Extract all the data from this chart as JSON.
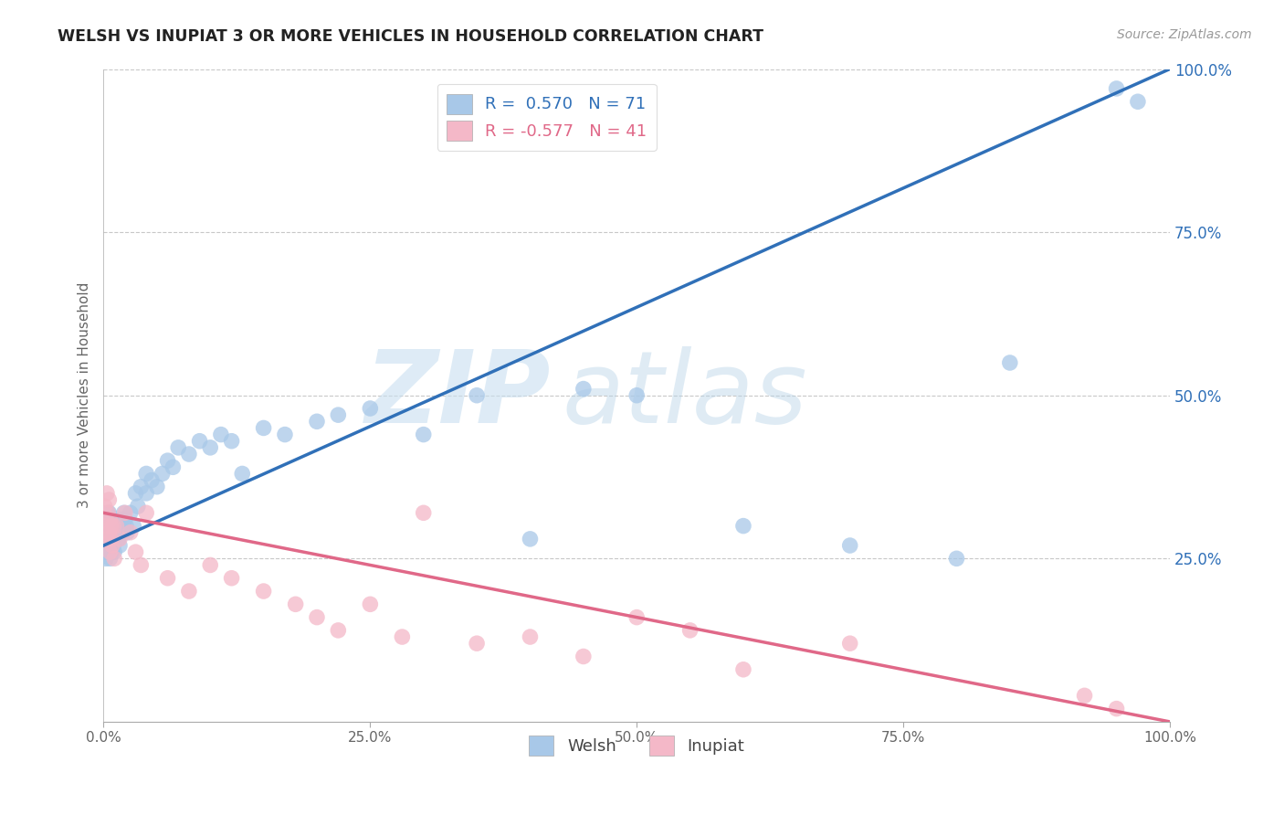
{
  "title": "WELSH VS INUPIAT 3 OR MORE VEHICLES IN HOUSEHOLD CORRELATION CHART",
  "source": "Source: ZipAtlas.com",
  "ylabel": "3 or more Vehicles in Household",
  "xlim": [
    0,
    1.0
  ],
  "ylim": [
    0,
    1.0
  ],
  "xticks": [
    0,
    0.25,
    0.5,
    0.75,
    1.0
  ],
  "yticks": [
    0.25,
    0.5,
    0.75,
    1.0
  ],
  "xticklabels": [
    "0.0%",
    "25.0%",
    "50.0%",
    "75.0%",
    "100.0%"
  ],
  "yticklabels": [
    "25.0%",
    "50.0%",
    "75.0%",
    "100.0%"
  ],
  "welsh_color": "#a8c8e8",
  "inupiat_color": "#f4b8c8",
  "welsh_R": 0.57,
  "welsh_N": 71,
  "inupiat_R": -0.577,
  "inupiat_N": 41,
  "welsh_line_color": "#3070b8",
  "inupiat_line_color": "#e06888",
  "welsh_line_x0": 0.0,
  "welsh_line_y0": 0.27,
  "welsh_line_x1": 1.0,
  "welsh_line_y1": 1.0,
  "inupiat_line_x0": 0.0,
  "inupiat_line_y0": 0.32,
  "inupiat_line_x1": 1.0,
  "inupiat_line_y1": 0.0,
  "watermark_zip": "ZIP",
  "watermark_atlas": "atlas",
  "background_color": "#ffffff",
  "grid_color": "#c8c8c8",
  "legend_R_color": "#3070b8",
  "legend_R2_color": "#e06888",
  "welsh_x": [
    0.001,
    0.001,
    0.002,
    0.002,
    0.003,
    0.003,
    0.003,
    0.004,
    0.004,
    0.004,
    0.005,
    0.005,
    0.005,
    0.006,
    0.006,
    0.006,
    0.007,
    0.007,
    0.008,
    0.008,
    0.009,
    0.009,
    0.01,
    0.01,
    0.011,
    0.012,
    0.013,
    0.014,
    0.015,
    0.016,
    0.017,
    0.018,
    0.019,
    0.02,
    0.021,
    0.022,
    0.025,
    0.028,
    0.03,
    0.032,
    0.035,
    0.04,
    0.04,
    0.045,
    0.05,
    0.055,
    0.06,
    0.065,
    0.07,
    0.08,
    0.09,
    0.1,
    0.11,
    0.12,
    0.13,
    0.15,
    0.17,
    0.2,
    0.22,
    0.25,
    0.3,
    0.35,
    0.4,
    0.45,
    0.5,
    0.6,
    0.7,
    0.8,
    0.85,
    0.95,
    0.97
  ],
  "welsh_y": [
    0.26,
    0.28,
    0.25,
    0.3,
    0.27,
    0.29,
    0.31,
    0.26,
    0.28,
    0.32,
    0.27,
    0.3,
    0.32,
    0.25,
    0.28,
    0.31,
    0.27,
    0.3,
    0.26,
    0.29,
    0.27,
    0.3,
    0.26,
    0.29,
    0.28,
    0.3,
    0.29,
    0.28,
    0.27,
    0.3,
    0.31,
    0.29,
    0.32,
    0.31,
    0.3,
    0.29,
    0.32,
    0.3,
    0.35,
    0.33,
    0.36,
    0.38,
    0.35,
    0.37,
    0.36,
    0.38,
    0.4,
    0.39,
    0.42,
    0.41,
    0.43,
    0.42,
    0.44,
    0.43,
    0.38,
    0.45,
    0.44,
    0.46,
    0.47,
    0.48,
    0.44,
    0.5,
    0.28,
    0.51,
    0.5,
    0.3,
    0.27,
    0.25,
    0.55,
    0.97,
    0.95
  ],
  "inupiat_x": [
    0.001,
    0.002,
    0.003,
    0.003,
    0.004,
    0.005,
    0.005,
    0.006,
    0.006,
    0.007,
    0.007,
    0.008,
    0.009,
    0.01,
    0.012,
    0.015,
    0.02,
    0.025,
    0.03,
    0.035,
    0.04,
    0.06,
    0.08,
    0.1,
    0.12,
    0.15,
    0.18,
    0.2,
    0.22,
    0.25,
    0.28,
    0.3,
    0.35,
    0.4,
    0.45,
    0.5,
    0.55,
    0.6,
    0.7,
    0.92,
    0.95
  ],
  "inupiat_y": [
    0.33,
    0.3,
    0.35,
    0.28,
    0.32,
    0.34,
    0.29,
    0.31,
    0.26,
    0.3,
    0.28,
    0.27,
    0.3,
    0.25,
    0.3,
    0.28,
    0.32,
    0.29,
    0.26,
    0.24,
    0.32,
    0.22,
    0.2,
    0.24,
    0.22,
    0.2,
    0.18,
    0.16,
    0.14,
    0.18,
    0.13,
    0.32,
    0.12,
    0.13,
    0.1,
    0.16,
    0.14,
    0.08,
    0.12,
    0.04,
    0.02
  ]
}
